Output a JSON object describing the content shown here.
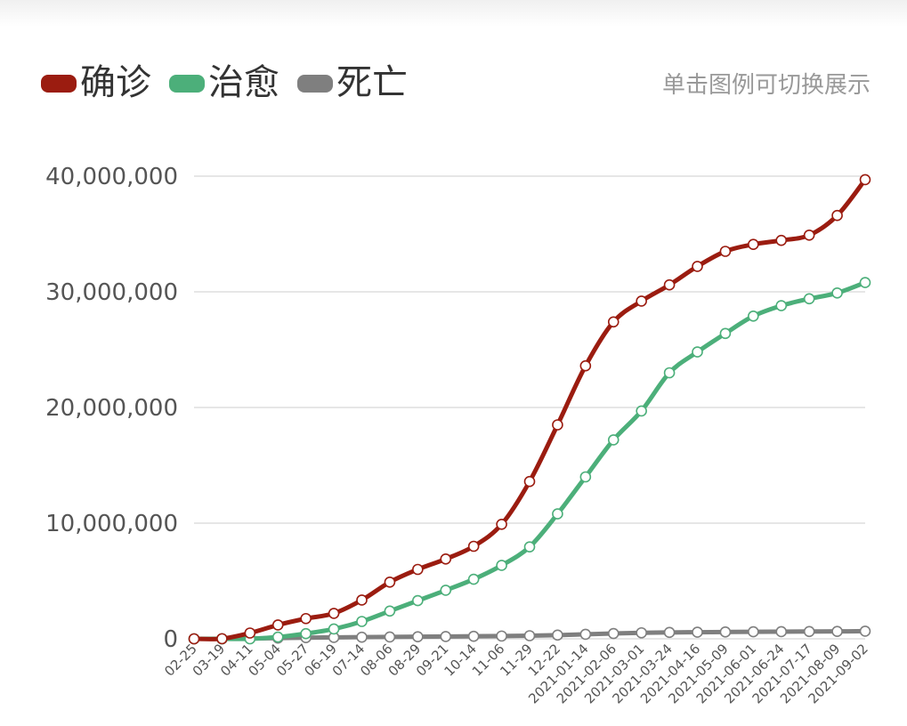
{
  "hint": "单击图例可切换展示",
  "colors": {
    "confirmed": "#9b1c10",
    "recovered": "#4caf7a",
    "deaths": "#7f7f7f",
    "grid": "#cccccc",
    "marker_fill": "#ffffff"
  },
  "chart_data": {
    "type": "line",
    "title": "",
    "xlabel": "",
    "ylabel": "",
    "legend": "top-left",
    "grid": true,
    "ylim": [
      0,
      40000000
    ],
    "yticks": [
      0,
      10000000,
      20000000,
      30000000,
      40000000
    ],
    "ytick_labels": [
      "0",
      "10,000,000",
      "20,000,000",
      "30,000,000",
      "40,000,000"
    ],
    "categories": [
      "02-25",
      "03-19",
      "04-11",
      "05-04",
      "05-27",
      "06-19",
      "07-14",
      "08-06",
      "08-29",
      "09-21",
      "10-14",
      "11-06",
      "11-29",
      "12-22",
      "2021-01-14",
      "2021-02-06",
      "2021-03-01",
      "2021-03-24",
      "2021-04-16",
      "2021-05-09",
      "2021-06-01",
      "2021-06-24",
      "2021-07-17",
      "2021-08-09",
      "2021-09-02"
    ],
    "series": [
      {
        "name": "确诊",
        "color_key": "confirmed",
        "values": [
          15,
          10000,
          500000,
          1200000,
          1750000,
          2200000,
          3350000,
          4900000,
          6000000,
          6900000,
          8000000,
          9900000,
          13600000,
          18500000,
          23600000,
          27400000,
          29200000,
          30600000,
          32200000,
          33500000,
          34100000,
          34450000,
          34900000,
          36600000,
          39700000
        ]
      },
      {
        "name": "治愈",
        "color_key": "recovered",
        "values": [
          0,
          0,
          0,
          150000,
          450000,
          850000,
          1500000,
          2400000,
          3300000,
          4200000,
          5150000,
          6350000,
          7950000,
          10800000,
          14000000,
          17200000,
          19700000,
          23000000,
          24800000,
          26400000,
          27900000,
          28800000,
          29400000,
          29900000,
          30800000
        ]
      },
      {
        "name": "死亡",
        "color_key": "deaths",
        "values": [
          0,
          0,
          20000,
          60000,
          100000,
          120000,
          140000,
          160000,
          180000,
          200000,
          220000,
          240000,
          270000,
          320000,
          390000,
          460000,
          520000,
          550000,
          570000,
          590000,
          610000,
          620000,
          630000,
          640000,
          660000
        ]
      }
    ]
  }
}
